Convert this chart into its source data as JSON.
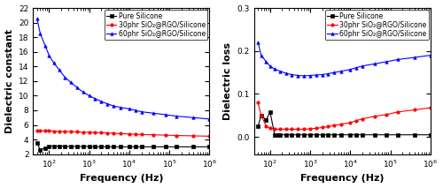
{
  "left": {
    "ylabel": "Dielectric constant",
    "xlabel": "Frequency (Hz)",
    "ylim": [
      2,
      22
    ],
    "yticks": [
      2,
      4,
      6,
      8,
      10,
      12,
      14,
      16,
      18,
      20,
      22
    ],
    "xlim": [
      40,
      1000000.0
    ],
    "series": {
      "black": {
        "label": "Pure Silicone",
        "color": "black",
        "marker": "s",
        "x": [
          50,
          60,
          80,
          100,
          130,
          180,
          250,
          350,
          500,
          700,
          1000,
          1400,
          2000,
          2800,
          4000,
          6000,
          10000,
          14000,
          20000,
          40000,
          80000,
          150000,
          400000,
          1000000
        ],
        "y": [
          3.5,
          2.6,
          2.85,
          3.1,
          3.1,
          3.1,
          3.05,
          3.05,
          3.05,
          3.05,
          3.05,
          3.0,
          3.0,
          3.0,
          3.0,
          3.0,
          3.0,
          3.0,
          3.0,
          3.0,
          3.0,
          3.0,
          3.0,
          3.0
        ]
      },
      "red": {
        "label": "30phr SiO₂@RGO/Silicone",
        "color": "red",
        "marker": "o",
        "x": [
          50,
          60,
          80,
          100,
          130,
          180,
          250,
          350,
          500,
          700,
          1000,
          1400,
          2000,
          2800,
          4000,
          6000,
          10000,
          14000,
          20000,
          40000,
          80000,
          150000,
          400000,
          1000000
        ],
        "y": [
          5.2,
          5.2,
          5.2,
          5.2,
          5.15,
          5.1,
          5.1,
          5.1,
          5.05,
          5.0,
          5.0,
          4.95,
          4.95,
          4.9,
          4.85,
          4.8,
          4.75,
          4.72,
          4.68,
          4.65,
          4.6,
          4.55,
          4.5,
          4.45
        ]
      },
      "blue": {
        "label": "60phr SiO₂@RGO/Silicone",
        "color": "blue",
        "marker": "^",
        "x": [
          50,
          60,
          80,
          100,
          130,
          180,
          250,
          350,
          500,
          700,
          1000,
          1400,
          2000,
          2800,
          4000,
          6000,
          10000,
          14000,
          20000,
          40000,
          80000,
          150000,
          400000,
          1000000
        ],
        "y": [
          20.5,
          18.5,
          16.8,
          15.5,
          14.5,
          13.5,
          12.5,
          11.8,
          11.1,
          10.5,
          10.0,
          9.6,
          9.2,
          8.9,
          8.6,
          8.4,
          8.2,
          8.0,
          7.8,
          7.6,
          7.4,
          7.2,
          7.0,
          6.8
        ]
      }
    }
  },
  "right": {
    "ylabel": "Dielectric loss",
    "xlabel": "Frequency (Hz)",
    "ylim": [
      -0.04,
      0.3
    ],
    "yticks": [
      0.0,
      0.1,
      0.2,
      0.3
    ],
    "xlim": [
      40,
      1000000.0
    ],
    "series": {
      "black": {
        "label": "Pure Silicone",
        "color": "black",
        "marker": "s",
        "x": [
          50,
          60,
          80,
          100,
          130,
          160,
          180,
          250,
          350,
          500,
          700,
          1000,
          1400,
          2000,
          2800,
          4000,
          6000,
          10000,
          14000,
          20000,
          40000,
          80000,
          150000,
          400000,
          1000000
        ],
        "y": [
          0.025,
          0.05,
          0.04,
          0.058,
          0.005,
          0.005,
          0.005,
          0.005,
          0.005,
          0.005,
          0.005,
          0.005,
          0.005,
          0.005,
          0.005,
          0.005,
          0.005,
          0.005,
          0.005,
          0.005,
          0.005,
          0.005,
          0.005,
          0.005,
          0.005
        ]
      },
      "red": {
        "label": "30phr SiO₂@RGO/Silicone",
        "color": "red",
        "marker": "o",
        "x": [
          50,
          60,
          80,
          100,
          130,
          180,
          250,
          350,
          500,
          700,
          1000,
          1400,
          2000,
          2800,
          4000,
          6000,
          10000,
          14000,
          20000,
          40000,
          80000,
          150000,
          400000,
          1000000
        ],
        "y": [
          0.08,
          0.05,
          0.025,
          0.02,
          0.018,
          0.018,
          0.018,
          0.018,
          0.018,
          0.018,
          0.019,
          0.02,
          0.022,
          0.024,
          0.027,
          0.03,
          0.033,
          0.038,
          0.042,
          0.048,
          0.052,
          0.058,
          0.063,
          0.068
        ]
      },
      "blue": {
        "label": "60phr SiO₂@RGO/Silicone",
        "color": "blue",
        "marker": "^",
        "x": [
          50,
          60,
          80,
          100,
          130,
          180,
          250,
          350,
          500,
          700,
          1000,
          1400,
          2000,
          2800,
          4000,
          6000,
          10000,
          14000,
          20000,
          40000,
          80000,
          150000,
          400000,
          1000000
        ],
        "y": [
          0.22,
          0.19,
          0.175,
          0.165,
          0.158,
          0.153,
          0.148,
          0.145,
          0.143,
          0.142,
          0.143,
          0.144,
          0.145,
          0.147,
          0.15,
          0.153,
          0.157,
          0.161,
          0.165,
          0.17,
          0.175,
          0.18,
          0.185,
          0.19
        ]
      }
    }
  },
  "legend_fontsize": 5.5,
  "tick_fontsize": 6.5,
  "label_fontsize": 8
}
